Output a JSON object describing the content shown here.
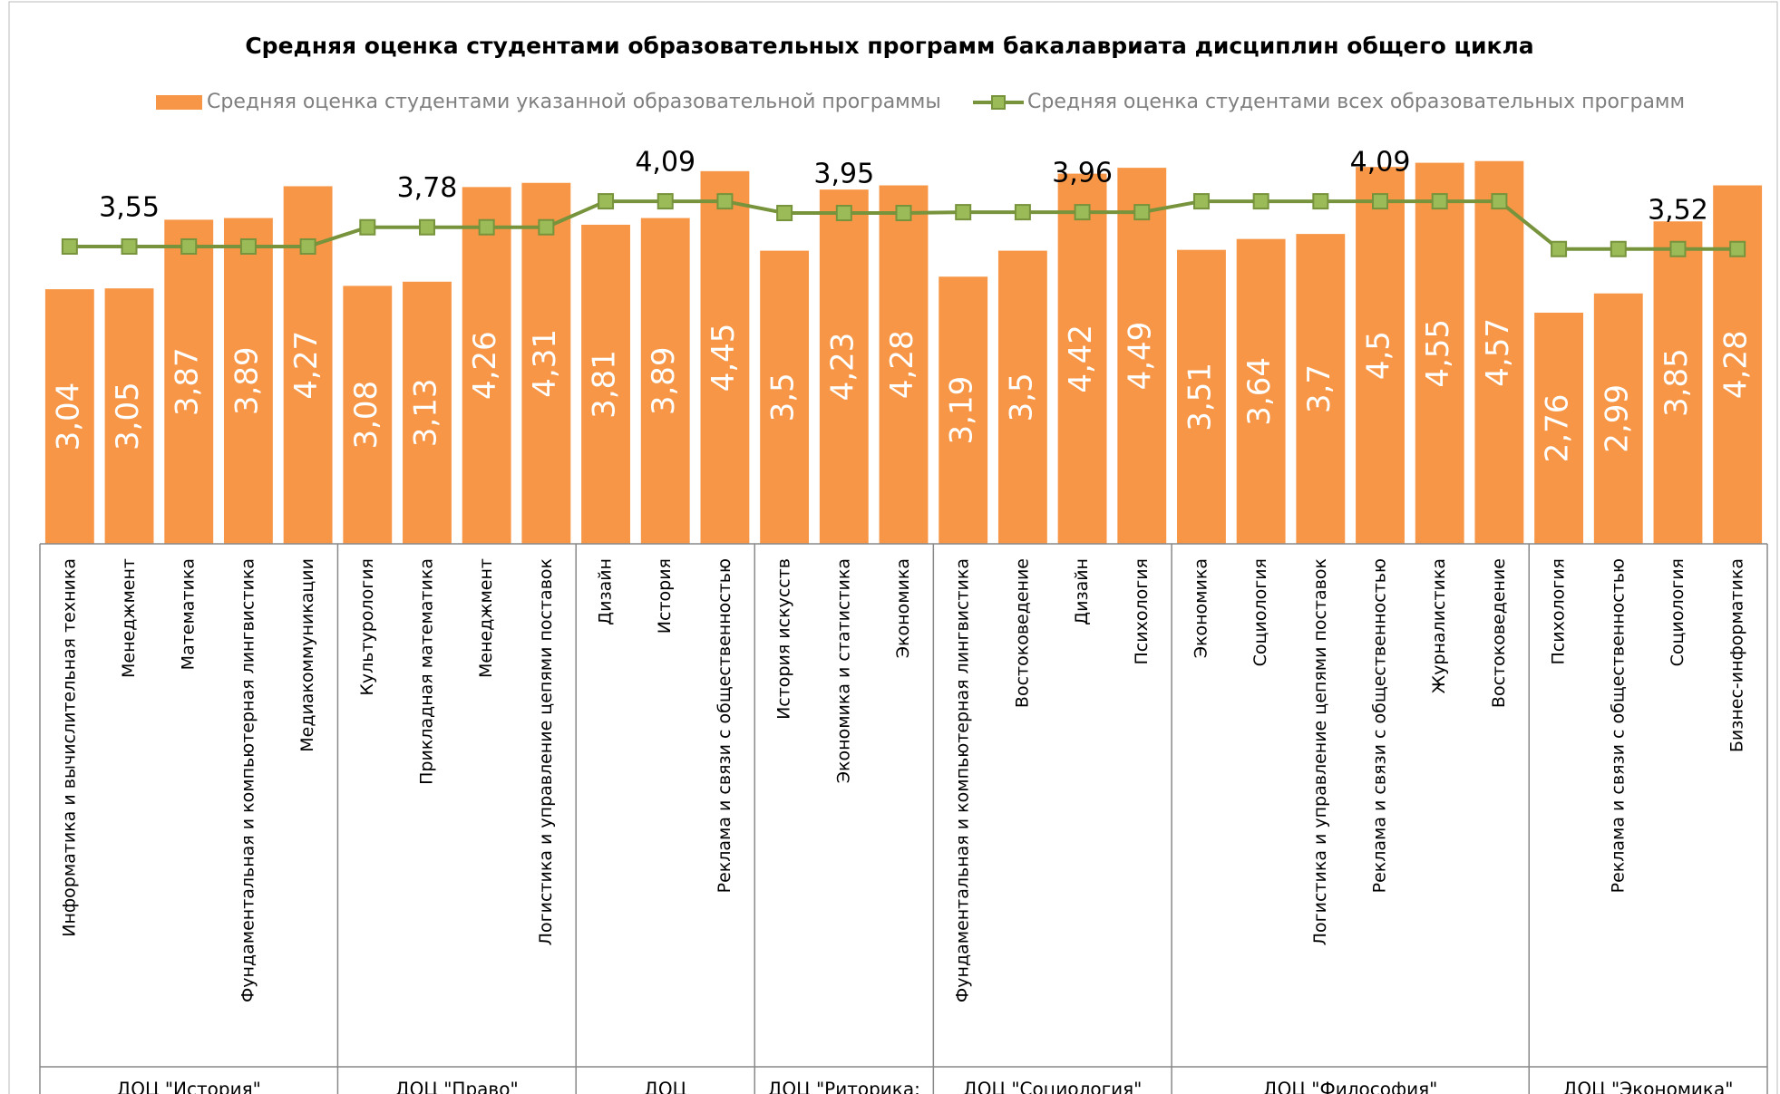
{
  "chart_data": {
    "type": "bar",
    "title": "Средняя оценка студентами образовательных программ бакалавриата дисциплин общего цикла",
    "categories": [
      "Информатика и вычислительная техника",
      "Менеджмент",
      "Математика",
      "Фундаментальная и компьютерная лингвистика",
      "Медиакоммуникации",
      "Культурология",
      "Прикладная математика",
      "Менеджмент",
      "Логистика и управление цепями поставок",
      "Дизайн",
      "История",
      "Реклама и связи с общественностью",
      "История искусств",
      "Экономика и статистика",
      "Экономика",
      "Фундаментальная и компьютерная лингвистика",
      "Востоковедение",
      "Дизайн",
      "Психология",
      "Экономика",
      "Социология",
      "Логистика и управление цепями поставок",
      "Реклама и связи с общественностью",
      "Журналистика",
      "Востоковедение",
      "Психология",
      "Реклама и связи с общественностью",
      "Социология",
      "Бизнес-информатика"
    ],
    "groups": [
      {
        "label": "ДОЦ \"История\"",
        "size": 5
      },
      {
        "label": "ДОЦ \"Право\"",
        "size": 4
      },
      {
        "label": "ДОЦ",
        "size": 3
      },
      {
        "label": "ДОЦ \"Риторика:",
        "size": 3
      },
      {
        "label": "ДОЦ \"Социология\"",
        "size": 4
      },
      {
        "label": "ДОЦ \"Философия\"",
        "size": 6
      },
      {
        "label": "ДОЦ \"Экономика\"",
        "size": 4
      }
    ],
    "series": [
      {
        "name": "Средняя оценка студентами указанной образовательной программы",
        "type": "bar",
        "color": "#f79646",
        "values": [
          3.04,
          3.05,
          3.87,
          3.89,
          4.27,
          3.08,
          3.13,
          4.26,
          4.31,
          3.81,
          3.89,
          4.45,
          3.5,
          4.23,
          4.28,
          3.19,
          3.5,
          4.42,
          4.49,
          3.51,
          3.64,
          3.7,
          4.5,
          4.55,
          4.57,
          2.76,
          2.99,
          3.85,
          4.28
        ],
        "value_labels": [
          "3,04",
          "3,05",
          "3,87",
          "3,89",
          "4,27",
          "3,08",
          "3,13",
          "4,26",
          "4,31",
          "3,81",
          "3,89",
          "4,45",
          "3,5",
          "4,23",
          "4,28",
          "3,19",
          "3,5",
          "4,42",
          "4,49",
          "3,51",
          "3,64",
          "3,7",
          "4,5",
          "4,55",
          "4,57",
          "2,76",
          "2,99",
          "3,85",
          "4,28"
        ]
      },
      {
        "name": "Средняя оценка студентами всех образовательных программ",
        "type": "line",
        "color": "#77933c",
        "marker_color": "#9bbb59",
        "values": [
          3.55,
          3.55,
          3.55,
          3.55,
          3.55,
          3.78,
          3.78,
          3.78,
          3.78,
          4.09,
          4.09,
          4.09,
          3.95,
          3.95,
          3.95,
          3.96,
          3.96,
          3.96,
          3.96,
          4.09,
          4.09,
          4.09,
          4.09,
          4.09,
          4.09,
          3.52,
          3.52,
          3.52,
          3.52
        ],
        "value_labels": [
          null,
          "3,55",
          null,
          null,
          null,
          null,
          "3,78",
          null,
          null,
          null,
          "4,09",
          null,
          null,
          "3,95",
          null,
          null,
          null,
          "3,96",
          null,
          null,
          null,
          null,
          "4,09",
          null,
          null,
          null,
          null,
          "3,52",
          null
        ]
      }
    ],
    "ylim": [
      0,
      5
    ],
    "yticks": []
  }
}
